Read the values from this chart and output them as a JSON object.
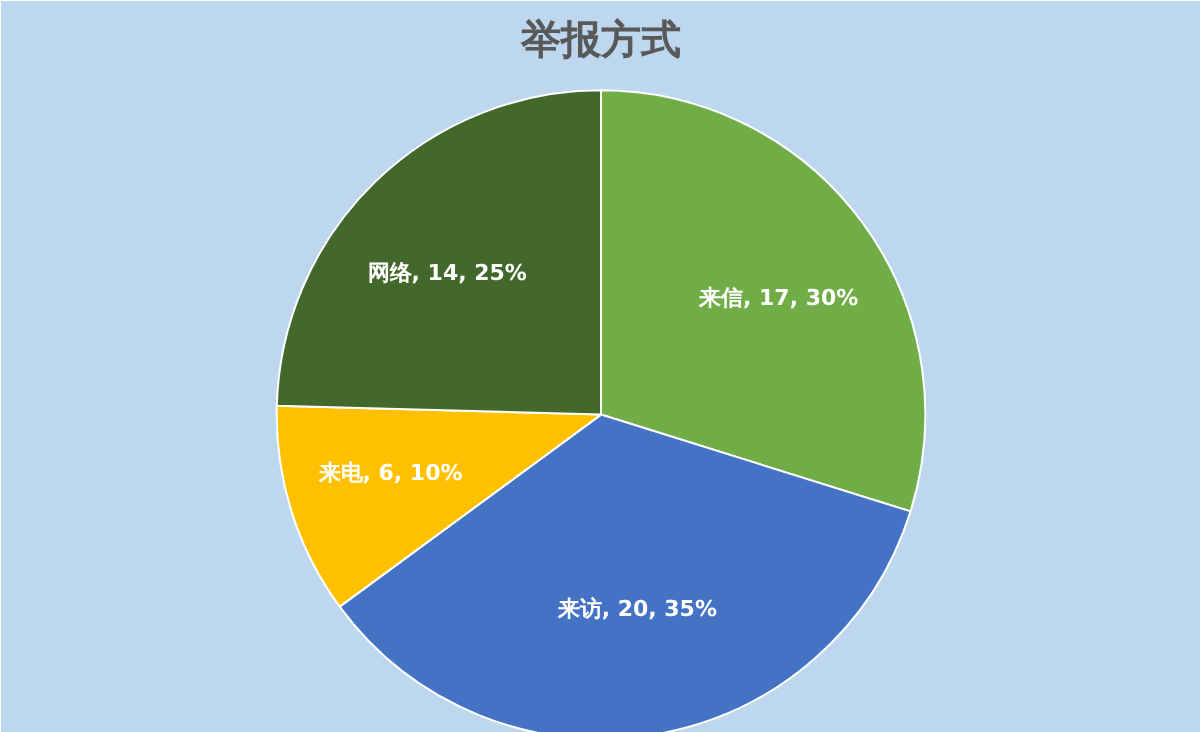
{
  "chart_data": {
    "type": "pie",
    "title": "举报方式",
    "categories": [
      "来信",
      "来访",
      "来电",
      "网络"
    ],
    "values": [
      17,
      20,
      6,
      14
    ],
    "colors": [
      "#70ad47",
      "#4472c4",
      "#ffc000",
      "#43682b"
    ],
    "value_labels": [
      "17, 30%",
      "20, 35%",
      "6, 10%",
      "14, 25%"
    ]
  }
}
